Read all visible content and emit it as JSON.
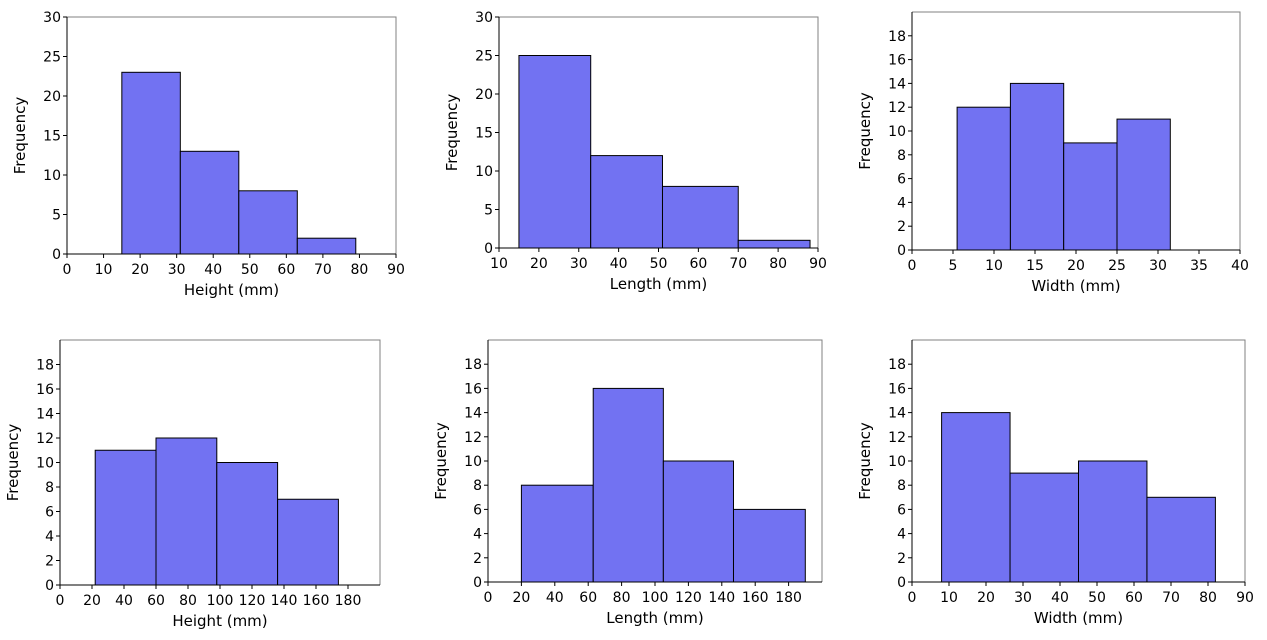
{
  "chart_data": [
    {
      "type": "bar",
      "xlabel": "Height (mm)",
      "ylabel": "Frequency",
      "xlim": [
        0,
        90
      ],
      "ylim": [
        0,
        30
      ],
      "xticks": [
        0,
        10,
        20,
        30,
        40,
        50,
        60,
        70,
        80,
        90
      ],
      "yticks": [
        0,
        5,
        10,
        15,
        20,
        25,
        30
      ],
      "bins": [
        [
          15,
          31
        ],
        [
          31,
          47
        ],
        [
          47,
          63
        ],
        [
          63,
          79
        ]
      ],
      "values": [
        23,
        13,
        8,
        2
      ]
    },
    {
      "type": "bar",
      "xlabel": "Length (mm)",
      "ylabel": "Frequency",
      "xlim": [
        10,
        90
      ],
      "ylim": [
        0,
        30
      ],
      "xticks": [
        10,
        20,
        30,
        40,
        50,
        60,
        70,
        80,
        90
      ],
      "yticks": [
        0,
        5,
        10,
        15,
        20,
        25,
        30
      ],
      "bins": [
        [
          15,
          33
        ],
        [
          33,
          51
        ],
        [
          51,
          70
        ],
        [
          70,
          88
        ]
      ],
      "values": [
        25,
        12,
        8,
        1
      ]
    },
    {
      "type": "bar",
      "xlabel": "Width (mm)",
      "ylabel": "Frequency",
      "xlim": [
        0,
        40
      ],
      "ylim": [
        0,
        20
      ],
      "xticks": [
        0,
        5,
        10,
        15,
        20,
        25,
        30,
        35,
        40
      ],
      "yticks": [
        0,
        2,
        4,
        6,
        8,
        10,
        12,
        14,
        16,
        18
      ],
      "bins": [
        [
          5.5,
          12
        ],
        [
          12,
          18.5
        ],
        [
          18.5,
          25
        ],
        [
          25,
          31.5
        ]
      ],
      "values": [
        12,
        14,
        9,
        11
      ]
    },
    {
      "type": "bar",
      "xlabel": "Height (mm)",
      "ylabel": "Frequency",
      "xlim": [
        0,
        200
      ],
      "ylim": [
        0,
        20
      ],
      "xticks": [
        0,
        20,
        40,
        60,
        80,
        100,
        120,
        140,
        160,
        180
      ],
      "yticks": [
        0,
        2,
        4,
        6,
        8,
        10,
        12,
        14,
        16,
        18
      ],
      "bins": [
        [
          22,
          60
        ],
        [
          60,
          98
        ],
        [
          98,
          136
        ],
        [
          136,
          174
        ]
      ],
      "values": [
        11,
        12,
        10,
        7
      ]
    },
    {
      "type": "bar",
      "xlabel": "Length (mm)",
      "ylabel": "Frequency",
      "xlim": [
        0,
        200
      ],
      "ylim": [
        0,
        20
      ],
      "xticks": [
        0,
        20,
        40,
        60,
        80,
        100,
        120,
        140,
        160,
        180
      ],
      "yticks": [
        0,
        2,
        4,
        6,
        8,
        10,
        12,
        14,
        16,
        18
      ],
      "bins": [
        [
          20,
          63
        ],
        [
          63,
          105
        ],
        [
          105,
          147
        ],
        [
          147,
          190
        ]
      ],
      "values": [
        8,
        16,
        10,
        6
      ]
    },
    {
      "type": "bar",
      "xlabel": "Width (mm)",
      "ylabel": "Frequency",
      "xlim": [
        0,
        90
      ],
      "ylim": [
        0,
        20
      ],
      "xticks": [
        0,
        10,
        20,
        30,
        40,
        50,
        60,
        70,
        80,
        90
      ],
      "yticks": [
        0,
        2,
        4,
        6,
        8,
        10,
        12,
        14,
        16,
        18
      ],
      "bins": [
        [
          8,
          26.5
        ],
        [
          26.5,
          45
        ],
        [
          45,
          63.5
        ],
        [
          63.5,
          82
        ]
      ],
      "values": [
        14,
        9,
        10,
        7
      ]
    }
  ],
  "colors": {
    "bar_fill": "#7272F2",
    "bar_stroke": "#000000",
    "axis": "#000000",
    "frame": "#808080"
  }
}
